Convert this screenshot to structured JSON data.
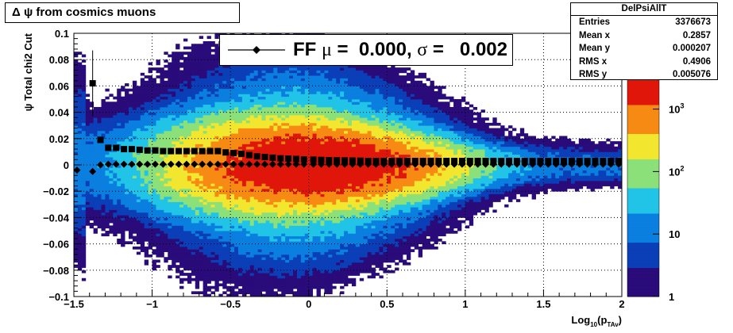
{
  "title": {
    "greek": "Δ ψ",
    "text": "from cosmics muons"
  },
  "stats": {
    "name": "DelPsiAllT",
    "rows": [
      {
        "label": "Entries",
        "value": "3376673"
      },
      {
        "label": "Mean x",
        "value": "0.2857"
      },
      {
        "label": "Mean y",
        "value": "0.000207"
      },
      {
        "label": "RMS x",
        "value": "0.4906"
      },
      {
        "label": "RMS y",
        "value": "0.005076"
      }
    ]
  },
  "legend": {
    "prefix": "FF ",
    "mu": "μ",
    "mu_value": " =  0.000, ",
    "sigma": "σ",
    "sigma_value": " =   0.002"
  },
  "colors": {
    "palette": [
      "#2a0b7a",
      "#0b3fb8",
      "#0a7fe0",
      "#21c4e6",
      "#8be07a",
      "#f2e62e",
      "#f78a12",
      "#e0160b"
    ],
    "markers": "#000000"
  },
  "chart_data": {
    "type": "heatmap",
    "xlabel": "Log",
    "xlabel_sub": "10",
    "xlabel_paren": "(p",
    "xlabel_sub2": "TAv",
    "xlabel_close": ")",
    "ylabel": "ψ  Total chi2 Cut",
    "xlim": [
      -1.5,
      2
    ],
    "ylim": [
      -0.1,
      0.1
    ],
    "x_ticks": [
      -1.5,
      -1,
      -0.5,
      0,
      0.5,
      1,
      1.5,
      2
    ],
    "x_tick_labels": [
      "−1.5",
      "−1",
      "−0.5",
      "0",
      "0.5",
      "1",
      "1.5",
      "2"
    ],
    "y_ticks": [
      -0.1,
      -0.08,
      -0.06,
      -0.04,
      -0.02,
      0,
      0.02,
      0.04,
      0.06,
      0.08,
      0.1
    ],
    "y_tick_labels": [
      "−0.1",
      "−0.08",
      "−0.06",
      "−0.04",
      "−0.02",
      "0",
      "0.02",
      "0.04",
      "0.06",
      "0.08",
      "0.1"
    ],
    "grid": true,
    "z_scale": "log",
    "z_range": [
      1,
      3000
    ],
    "z_tick_labels": [
      {
        "base": "1",
        "exp": "",
        "value": 1
      },
      {
        "base": "10",
        "exp": "",
        "value": 10
      },
      {
        "base": "10",
        "exp": "2",
        "value": 100
      },
      {
        "base": "10",
        "exp": "3",
        "value": 1000
      }
    ],
    "series": [
      {
        "name": "mean",
        "marker": "diamond",
        "x": [
          -1.48,
          -1.38,
          -1.33,
          -1.28,
          -1.23,
          -1.18,
          -1.13,
          -1.08,
          -1.03,
          -0.98,
          -0.93,
          -0.88,
          -0.83,
          -0.78,
          -0.73,
          -0.68,
          -0.63,
          -0.58,
          -0.53,
          -0.48,
          -0.43,
          -0.38,
          -0.33,
          -0.28,
          -0.23,
          -0.18,
          -0.13,
          -0.08,
          -0.03,
          0.03,
          0.08,
          0.13,
          0.18,
          0.23,
          0.28,
          0.33,
          0.38,
          0.43,
          0.48,
          0.53,
          0.58,
          0.63,
          0.68,
          0.73,
          0.78,
          0.83,
          0.88,
          0.93,
          0.98,
          1.03,
          1.08,
          1.13,
          1.18,
          1.23,
          1.28,
          1.33,
          1.38,
          1.43,
          1.48,
          1.53,
          1.58,
          1.63,
          1.68,
          1.73,
          1.78,
          1.83,
          1.88,
          1.93,
          1.98
        ],
        "y": [
          -0.004,
          -0.005,
          0,
          0.0005,
          0.0005,
          0.0005,
          0.0005,
          0.0005,
          0.0005,
          0.0005,
          0.0005,
          0.0005,
          0.0005,
          0.0005,
          0.0005,
          0.0005,
          0.0005,
          0.0005,
          0.0005,
          0.0005,
          0.0005,
          0.0005,
          0.0005,
          0.0005,
          0.0005,
          0.0005,
          0.0005,
          0.0005,
          0.0005,
          0.0005,
          0.0005,
          0.0005,
          0.0005,
          0.0005,
          0.0005,
          0.0005,
          0.0005,
          0.0005,
          0.0005,
          0.0005,
          0.0005,
          0.0005,
          0.0005,
          0.0005,
          0.0005,
          0.0005,
          0.0005,
          0.0005,
          0.0005,
          0.0005,
          0.0005,
          0.0005,
          0.0005,
          0.0005,
          0.0005,
          0.0005,
          0.0005,
          0.0005,
          0.0005,
          0.0005,
          0.0005,
          0.0005,
          0.0005,
          0.0005,
          0.0005,
          0.0005,
          0.0005,
          0.0005,
          0.0005
        ]
      },
      {
        "name": "sigma",
        "marker": "square",
        "x": [
          -1.38,
          -1.33,
          -1.28,
          -1.23,
          -1.18,
          -1.13,
          -1.08,
          -1.03,
          -0.98,
          -0.93,
          -0.88,
          -0.83,
          -0.78,
          -0.73,
          -0.68,
          -0.63,
          -0.58,
          -0.53,
          -0.48,
          -0.43,
          -0.38,
          -0.33,
          -0.28,
          -0.23,
          -0.18,
          -0.13,
          -0.08,
          -0.03,
          0.03,
          0.08,
          0.13,
          0.18,
          0.23,
          0.28,
          0.33,
          0.38,
          0.43,
          0.48,
          0.53,
          0.58,
          0.63,
          0.68,
          0.73,
          0.78,
          0.83,
          0.88,
          0.93,
          0.98,
          1.03,
          1.08,
          1.13,
          1.18,
          1.23,
          1.28,
          1.33,
          1.38,
          1.43,
          1.48,
          1.53,
          1.58,
          1.63,
          1.68,
          1.73,
          1.78,
          1.83,
          1.88,
          1.93,
          1.98
        ],
        "y": [
          0.062,
          0.019,
          0.013,
          0.013,
          0.012,
          0.012,
          0.0115,
          0.011,
          0.011,
          0.0105,
          0.0105,
          0.0105,
          0.0105,
          0.0105,
          0.0105,
          0.0105,
          0.0105,
          0.0095,
          0.009,
          0.0085,
          0.0075,
          0.0065,
          0.006,
          0.0055,
          0.005,
          0.0048,
          0.0045,
          0.0042,
          0.004,
          0.0038,
          0.0036,
          0.0035,
          0.0034,
          0.0033,
          0.0032,
          0.003,
          0.003,
          0.003,
          0.003,
          0.003,
          0.003,
          0.003,
          0.003,
          0.003,
          0.003,
          0.003,
          0.003,
          0.003,
          0.003,
          0.003,
          0.003,
          0.003,
          0.003,
          0.003,
          0.003,
          0.003,
          0.003,
          0.003,
          0.003,
          0.003,
          0.003,
          0.003,
          0.003,
          0.003,
          0.003,
          0.003,
          0.003,
          0.003
        ]
      }
    ]
  }
}
